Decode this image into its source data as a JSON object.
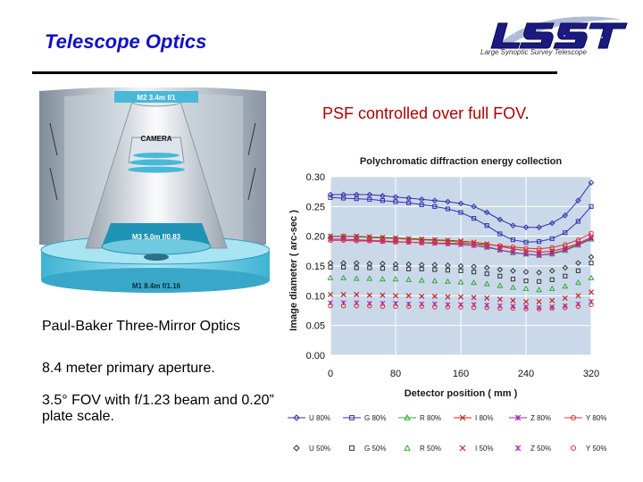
{
  "slide": {
    "title": "Telescope Optics",
    "logo_text": "Large Synoptic Survey Telescope",
    "diagram_labels": {
      "m2": "M2 3.4m f/1",
      "camera": "CAMERA",
      "m3": "M3 5.0m f/0.83",
      "m1": "M1 8.4m f/1.16"
    },
    "diagram_caption": "Paul-Baker Three-Mirror Optics",
    "bullets": [
      "8.4 meter primary aperture.",
      "3.5° FOV with f/1.23 beam and 0.20” plate scale."
    ],
    "psf_heading": "PSF controlled over full FOV",
    "psf_heading_period": "."
  },
  "colors": {
    "title": "#1010c8",
    "psf_heading": "#b00000",
    "plot_bg": "#c9d9ea"
  },
  "chart_data": {
    "type": "scatter",
    "title": "Polychromatic diffraction energy collection",
    "xlabel": "Detector position ( mm )",
    "ylabel": "Image diameter ( arc-sec )",
    "xlim": [
      0,
      320
    ],
    "ylim": [
      0,
      0.3
    ],
    "x_ticks": [
      "0",
      "80",
      "160",
      "240",
      "320"
    ],
    "y_ticks": [
      "0.00",
      "0.05",
      "0.10",
      "0.15",
      "0.20",
      "0.25",
      "0.30"
    ],
    "grid": true,
    "legend_position": "bottom",
    "x": [
      0,
      16,
      32,
      48,
      64,
      80,
      96,
      112,
      128,
      144,
      160,
      176,
      192,
      208,
      224,
      240,
      256,
      272,
      288,
      304,
      320
    ],
    "series": [
      {
        "name": "U 80%",
        "color": "#3333aa",
        "marker": "diamond",
        "line": true,
        "values": [
          0.27,
          0.27,
          0.27,
          0.27,
          0.268,
          0.266,
          0.264,
          0.262,
          0.26,
          0.258,
          0.255,
          0.25,
          0.24,
          0.228,
          0.218,
          0.215,
          0.215,
          0.222,
          0.235,
          0.26,
          0.29
        ]
      },
      {
        "name": "G 80%",
        "color": "#3333aa",
        "marker": "square",
        "line": true,
        "values": [
          0.265,
          0.264,
          0.263,
          0.262,
          0.26,
          0.258,
          0.256,
          0.253,
          0.25,
          0.246,
          0.24,
          0.23,
          0.218,
          0.204,
          0.194,
          0.19,
          0.191,
          0.196,
          0.206,
          0.225,
          0.25
        ]
      },
      {
        "name": "R 80%",
        "color": "#33aa33",
        "marker": "triangle",
        "line": true,
        "values": [
          0.2,
          0.2,
          0.199,
          0.198,
          0.197,
          0.196,
          0.195,
          0.194,
          0.193,
          0.192,
          0.19,
          0.187,
          0.183,
          0.177,
          0.172,
          0.17,
          0.168,
          0.17,
          0.176,
          0.185,
          0.195
        ]
      },
      {
        "name": "I 80%",
        "color": "#cc2222",
        "marker": "x",
        "line": true,
        "values": [
          0.2,
          0.2,
          0.2,
          0.199,
          0.198,
          0.197,
          0.196,
          0.195,
          0.194,
          0.193,
          0.192,
          0.19,
          0.187,
          0.183,
          0.179,
          0.176,
          0.173,
          0.175,
          0.18,
          0.188,
          0.198
        ]
      },
      {
        "name": "Z 80%",
        "color": "#aa22aa",
        "marker": "star",
        "line": true,
        "values": [
          0.195,
          0.195,
          0.194,
          0.193,
          0.192,
          0.191,
          0.19,
          0.189,
          0.188,
          0.187,
          0.186,
          0.184,
          0.181,
          0.177,
          0.173,
          0.17,
          0.168,
          0.171,
          0.177,
          0.186,
          0.196
        ]
      },
      {
        "name": "Y 80%",
        "color": "#dd3333",
        "marker": "circle",
        "line": true,
        "values": [
          0.193,
          0.193,
          0.192,
          0.192,
          0.191,
          0.19,
          0.19,
          0.189,
          0.189,
          0.188,
          0.188,
          0.187,
          0.186,
          0.184,
          0.182,
          0.18,
          0.179,
          0.181,
          0.186,
          0.194,
          0.205
        ]
      },
      {
        "name": "U 50%",
        "color": "#333333",
        "marker": "diamond",
        "line": false,
        "values": [
          0.155,
          0.155,
          0.155,
          0.154,
          0.154,
          0.153,
          0.153,
          0.152,
          0.152,
          0.151,
          0.15,
          0.149,
          0.147,
          0.144,
          0.142,
          0.14,
          0.139,
          0.142,
          0.147,
          0.155,
          0.165
        ]
      },
      {
        "name": "G 50%",
        "color": "#333333",
        "marker": "square",
        "line": false,
        "values": [
          0.148,
          0.148,
          0.147,
          0.147,
          0.146,
          0.146,
          0.145,
          0.145,
          0.144,
          0.143,
          0.142,
          0.14,
          0.137,
          0.133,
          0.128,
          0.125,
          0.124,
          0.127,
          0.133,
          0.142,
          0.155
        ]
      },
      {
        "name": "R 50%",
        "color": "#33aa33",
        "marker": "triangle",
        "line": false,
        "values": [
          0.13,
          0.13,
          0.129,
          0.129,
          0.128,
          0.128,
          0.127,
          0.126,
          0.125,
          0.124,
          0.123,
          0.122,
          0.12,
          0.117,
          0.114,
          0.112,
          0.11,
          0.112,
          0.116,
          0.122,
          0.13
        ]
      },
      {
        "name": "I 50%",
        "color": "#cc2222",
        "marker": "x",
        "line": false,
        "values": [
          0.102,
          0.102,
          0.102,
          0.101,
          0.101,
          0.1,
          0.1,
          0.099,
          0.099,
          0.098,
          0.098,
          0.097,
          0.096,
          0.094,
          0.092,
          0.09,
          0.09,
          0.092,
          0.096,
          0.1,
          0.106
        ]
      },
      {
        "name": "Z 50%",
        "color": "#aa22aa",
        "marker": "star",
        "line": false,
        "values": [
          0.088,
          0.088,
          0.088,
          0.087,
          0.087,
          0.087,
          0.086,
          0.086,
          0.086,
          0.085,
          0.085,
          0.085,
          0.084,
          0.083,
          0.082,
          0.081,
          0.08,
          0.081,
          0.083,
          0.086,
          0.09
        ]
      },
      {
        "name": "Y 50%",
        "color": "#dd3333",
        "marker": "circle",
        "line": false,
        "values": [
          0.083,
          0.083,
          0.083,
          0.083,
          0.082,
          0.082,
          0.082,
          0.082,
          0.081,
          0.081,
          0.081,
          0.08,
          0.08,
          0.079,
          0.079,
          0.078,
          0.078,
          0.079,
          0.08,
          0.082,
          0.085
        ]
      }
    ]
  }
}
